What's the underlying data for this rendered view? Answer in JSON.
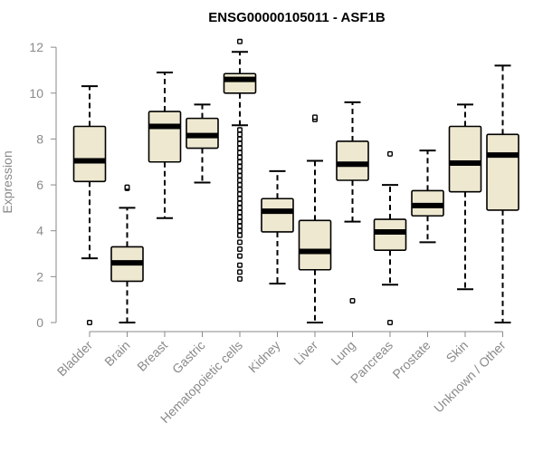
{
  "chart_data": {
    "type": "boxplot",
    "title": "ENSG00000105011 - ASF1B",
    "xlabel": "",
    "ylabel": "Expression",
    "ylim": [
      0,
      12.4
    ],
    "yticks": [
      0,
      2,
      4,
      6,
      8,
      10,
      12
    ],
    "grid": false,
    "legend": "none",
    "colors": {
      "box_fill": "#ede8cf",
      "outline": "#000000",
      "axis": "#8a8a8a",
      "title": "#000000"
    },
    "categories": [
      "Bladder",
      "Brain",
      "Breast",
      "Gastric",
      "Hematopoietic cells",
      "Kidney",
      "Liver",
      "Lung",
      "Pancreas",
      "Prostate",
      "Skin",
      "Unknown / Other"
    ],
    "boxes": [
      {
        "category": "Bladder",
        "whisker_low": 2.8,
        "q1": 6.15,
        "median": 7.05,
        "q3": 8.55,
        "whisker_high": 10.3,
        "outliers": [
          0.0
        ]
      },
      {
        "category": "Brain",
        "whisker_low": 0.0,
        "q1": 1.8,
        "median": 2.6,
        "q3": 3.3,
        "whisker_high": 5.0,
        "outliers": [
          5.85,
          5.9
        ]
      },
      {
        "category": "Breast",
        "whisker_low": 4.55,
        "q1": 7.0,
        "median": 8.55,
        "q3": 9.2,
        "whisker_high": 10.9,
        "outliers": []
      },
      {
        "category": "Gastric",
        "whisker_low": 6.1,
        "q1": 7.6,
        "median": 8.15,
        "q3": 8.9,
        "whisker_high": 9.5,
        "outliers": []
      },
      {
        "category": "Hematopoietic cells",
        "whisker_low": 8.6,
        "q1": 10.0,
        "median": 10.6,
        "q3": 10.85,
        "whisker_high": 11.8,
        "outliers": [
          12.25,
          8.4,
          8.2,
          8.0,
          7.8,
          7.6,
          7.4,
          7.2,
          7.0,
          6.8,
          6.6,
          6.4,
          6.2,
          6.0,
          5.8,
          5.6,
          5.4,
          5.2,
          5.0,
          4.8,
          4.6,
          4.4,
          4.2,
          4.0,
          3.8,
          3.5,
          3.2,
          2.9,
          2.5,
          2.2,
          1.9
        ]
      },
      {
        "category": "Kidney",
        "whisker_low": 1.7,
        "q1": 3.95,
        "median": 4.85,
        "q3": 5.4,
        "whisker_high": 6.6,
        "outliers": []
      },
      {
        "category": "Liver",
        "whisker_low": 0.0,
        "q1": 2.3,
        "median": 3.1,
        "q3": 4.45,
        "whisker_high": 7.05,
        "outliers": [
          8.85,
          8.95
        ]
      },
      {
        "category": "Lung",
        "whisker_low": 4.4,
        "q1": 6.2,
        "median": 6.9,
        "q3": 7.9,
        "whisker_high": 9.6,
        "outliers": [
          0.95
        ]
      },
      {
        "category": "Pancreas",
        "whisker_low": 1.65,
        "q1": 3.15,
        "median": 3.95,
        "q3": 4.5,
        "whisker_high": 6.0,
        "outliers": [
          7.35,
          0.0
        ]
      },
      {
        "category": "Prostate",
        "whisker_low": 3.5,
        "q1": 4.65,
        "median": 5.1,
        "q3": 5.75,
        "whisker_high": 7.5,
        "outliers": []
      },
      {
        "category": "Skin",
        "whisker_low": 1.45,
        "q1": 5.7,
        "median": 6.95,
        "q3": 8.55,
        "whisker_high": 9.5,
        "outliers": []
      },
      {
        "category": "Unknown / Other",
        "whisker_low": 0.0,
        "q1": 4.9,
        "median": 7.3,
        "q3": 8.2,
        "whisker_high": 11.2,
        "outliers": []
      }
    ]
  }
}
